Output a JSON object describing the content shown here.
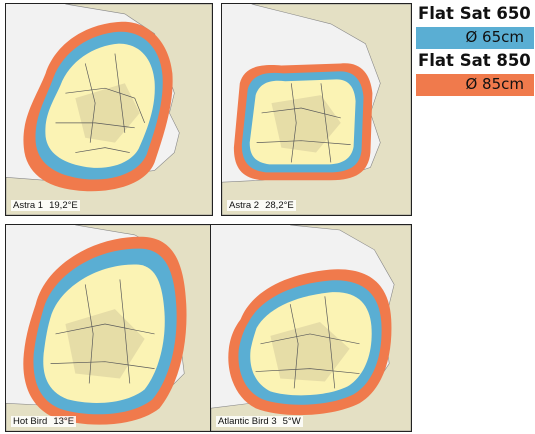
{
  "maps": [
    {
      "name": "Astra 1",
      "position": "19,2°E"
    },
    {
      "name": "Astra 2",
      "position": "28,2°E"
    },
    {
      "name": "Hot Bird",
      "position": "13°E"
    },
    {
      "name": "Atlantic Bird 3",
      "position": "5°W"
    }
  ],
  "legend": {
    "items": [
      {
        "title": "Flat Sat 650",
        "label": "Ø 65cm",
        "color": "#5aaed3"
      },
      {
        "title": "Flat Sat 850",
        "label": "Ø 85cm",
        "color": "#f07a4c"
      }
    ]
  },
  "colors": {
    "land": "#eae6c6",
    "core": "#fbf3b4",
    "core_shade": "#d6ca9c",
    "sea": "#f2f2f2",
    "border": "#5a5a5a"
  }
}
